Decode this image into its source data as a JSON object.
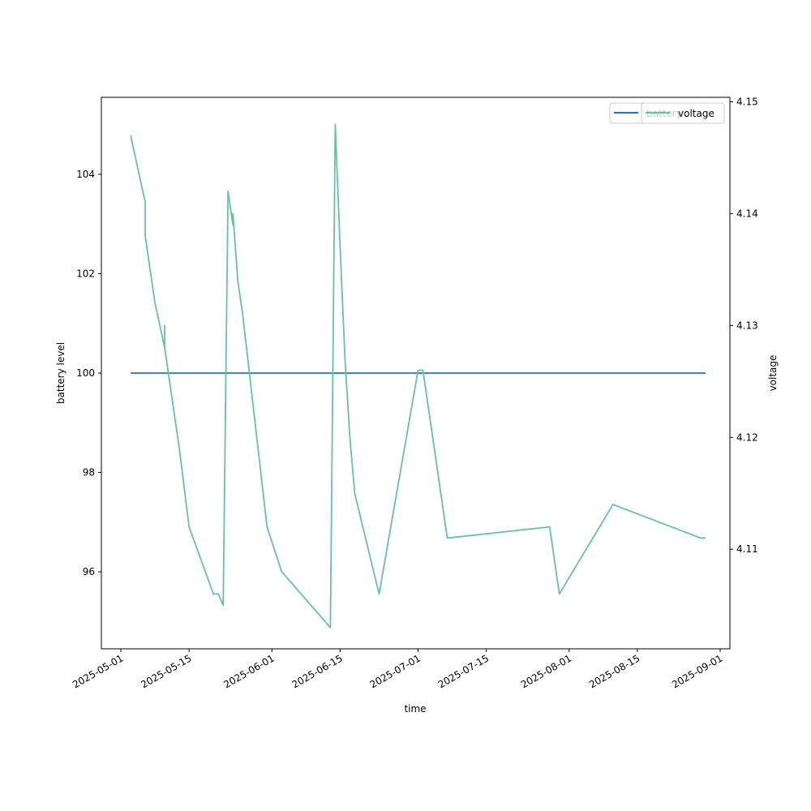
{
  "chart_data": {
    "type": "line",
    "xlabel": "time",
    "ylabel_left": "battery level",
    "ylabel_right": "voltage",
    "x_ticks": [
      "2025-05-01",
      "2025-05-15",
      "2025-06-01",
      "2025-06-15",
      "2025-07-01",
      "2025-07-15",
      "2025-08-01",
      "2025-08-15",
      "2025-09-01"
    ],
    "y_left_ticks": [
      96,
      98,
      100,
      102,
      104
    ],
    "y_right_ticks": [
      4.11,
      4.12,
      4.13,
      4.14,
      4.15
    ],
    "y_left_lim": [
      94.45,
      105.55
    ],
    "y_right_lim": [
      4.1011,
      4.1504
    ],
    "x_lim": [
      "2025-04-27",
      "2025-09-03"
    ],
    "grid": false,
    "series": [
      {
        "name": "battery",
        "axis": "left",
        "color": "#1f77b4",
        "points": [
          [
            "2025-05-03",
            100
          ],
          [
            "2025-08-29",
            100
          ]
        ]
      },
      {
        "name": "voltage",
        "axis": "right",
        "color": "#66c2a5",
        "points": [
          [
            "2025-05-03",
            4.147
          ],
          [
            "2025-05-04",
            4.145
          ],
          [
            "2025-05-06",
            4.141
          ],
          [
            "2025-05-06",
            4.138
          ],
          [
            "2025-05-08",
            4.132
          ],
          [
            "2025-05-10",
            4.128
          ],
          [
            "2025-05-10",
            4.13
          ],
          [
            "2025-05-10",
            4.128
          ],
          [
            "2025-05-13",
            4.119
          ],
          [
            "2025-05-15",
            4.112
          ],
          [
            "2025-05-20",
            4.106
          ],
          [
            "2025-05-21",
            4.106
          ],
          [
            "2025-05-22",
            4.105
          ],
          [
            "2025-05-22",
            4.105
          ],
          [
            "2025-05-23",
            4.142
          ],
          [
            "2025-05-24",
            4.139
          ],
          [
            "2025-05-24",
            4.14
          ],
          [
            "2025-05-25",
            4.134
          ],
          [
            "2025-05-26",
            4.131
          ],
          [
            "2025-05-31",
            4.112
          ],
          [
            "2025-06-03",
            4.108
          ],
          [
            "2025-06-13",
            4.103
          ],
          [
            "2025-06-14",
            4.148
          ],
          [
            "2025-06-15",
            4.137
          ],
          [
            "2025-06-16",
            4.127
          ],
          [
            "2025-06-17",
            4.12
          ],
          [
            "2025-06-18",
            4.115
          ],
          [
            "2025-06-23",
            4.106
          ],
          [
            "2025-07-01",
            4.126
          ],
          [
            "2025-07-02",
            4.126
          ],
          [
            "2025-07-07",
            4.111
          ],
          [
            "2025-07-28",
            4.112
          ],
          [
            "2025-07-30",
            4.106
          ],
          [
            "2025-08-10",
            4.114
          ],
          [
            "2025-08-28",
            4.111
          ],
          [
            "2025-08-29",
            4.111
          ]
        ]
      }
    ],
    "legend_left": {
      "entries": [
        "battery"
      ],
      "placement": "top-right"
    },
    "legend_right": {
      "entries": [
        "voltage"
      ],
      "placement": "top-right"
    }
  }
}
